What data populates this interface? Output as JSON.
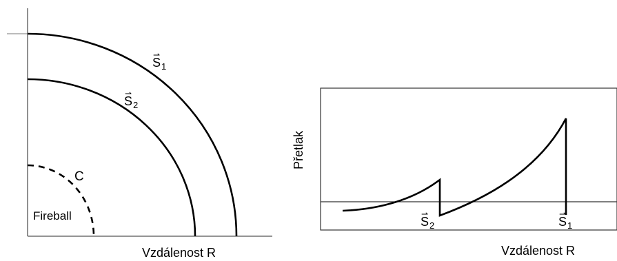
{
  "left_diagram": {
    "fronts": [
      {
        "letter": "S",
        "subscript": "1"
      },
      {
        "letter": "S",
        "subscript": "2"
      }
    ],
    "c_label": "C",
    "fireball_label": "Fireball",
    "x_axis_label": "Vzdálenost R"
  },
  "right_diagram": {
    "y_axis_label": "Přetlak",
    "x_axis_label": "Vzdálenost R",
    "markers": [
      {
        "letter": "S",
        "subscript": "2"
      },
      {
        "letter": "S",
        "subscript": "1"
      }
    ]
  },
  "colors": {
    "line": "#000000",
    "axis": "#555555",
    "frame": "#333333",
    "background": "#ffffff"
  }
}
